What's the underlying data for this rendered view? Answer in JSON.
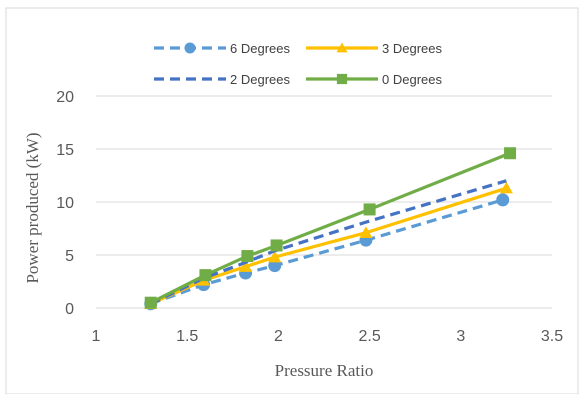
{
  "chart_data": {
    "type": "line",
    "xlabel": "Pressure Ratio",
    "ylabel": "Power produced (kW)",
    "xlim": [
      1,
      3.5
    ],
    "ylim": [
      0,
      20
    ],
    "xticks": [
      "1",
      "1.5",
      "2",
      "2.5",
      "3",
      "3.5"
    ],
    "yticks": [
      "0",
      "5",
      "10",
      "15",
      "20"
    ],
    "grid": "horizontal",
    "legend_position": "top",
    "series": [
      {
        "name": "6 Degrees",
        "color": "#5b9bd5",
        "line_style": "dashed",
        "marker": "circle",
        "x": [
          1.3,
          1.59,
          1.82,
          1.98,
          2.48,
          3.23
        ],
        "y": [
          0.4,
          2.2,
          3.3,
          4.0,
          6.4,
          10.2
        ]
      },
      {
        "name": "3 Degrees",
        "color": "#ffc000",
        "line_style": "solid",
        "marker": "triangle",
        "x": [
          1.3,
          1.59,
          1.82,
          1.98,
          2.48,
          3.25
        ],
        "y": [
          0.4,
          2.6,
          3.9,
          4.8,
          7.1,
          11.3
        ]
      },
      {
        "name": "2 Degrees",
        "color": "#4472c4",
        "line_style": "dashed",
        "marker": "none",
        "x": [
          1.3,
          1.59,
          1.82,
          1.98,
          2.48,
          3.25
        ],
        "y": [
          0.4,
          2.8,
          4.3,
          5.4,
          8.1,
          12.0
        ]
      },
      {
        "name": "0 Degrees",
        "color": "#70ad47",
        "line_style": "solid",
        "marker": "square",
        "x": [
          1.3,
          1.6,
          1.83,
          1.99,
          2.5,
          3.27
        ],
        "y": [
          0.5,
          3.1,
          4.9,
          5.9,
          9.3,
          14.6
        ]
      }
    ]
  }
}
